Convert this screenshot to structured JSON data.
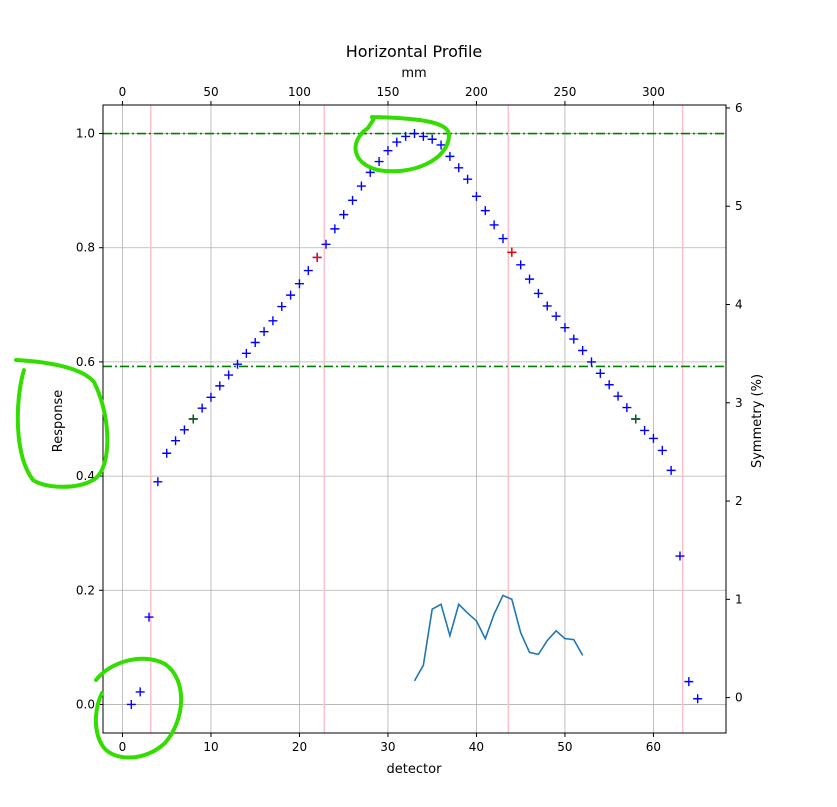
{
  "chart_data": {
    "type": "scatter",
    "title": "Horizontal Profile",
    "xlabel": "detector",
    "ylabel": "Response",
    "x2label": "mm",
    "y2label": "Symmetry (%)",
    "xlim": [
      -2.2,
      68.2
    ],
    "ylim": [
      -0.05,
      1.05
    ],
    "y2lim": [
      -0.36,
      6.03
    ],
    "x_ticks": [
      0,
      10,
      20,
      30,
      40,
      50,
      60
    ],
    "y_ticks": [
      0.0,
      0.2,
      0.4,
      0.6,
      0.8,
      1.0
    ],
    "x2_ticks": [
      0,
      50,
      100,
      150,
      200,
      250,
      300
    ],
    "y2_ticks": [
      0,
      1,
      2,
      3,
      4,
      5,
      6
    ],
    "mm_per_detector": 5.0,
    "grid": true,
    "series": [
      {
        "kind": "points",
        "color": "#0000ff",
        "x": [
          1,
          2,
          3,
          4,
          5,
          6,
          7,
          8,
          9,
          10,
          11,
          12,
          13,
          14,
          15,
          16,
          17,
          18,
          19,
          20,
          21,
          22,
          23,
          24,
          25,
          26,
          27,
          28,
          29,
          30,
          31,
          32,
          33,
          34,
          35,
          36,
          37,
          38,
          39,
          40,
          41,
          42,
          43,
          44,
          45,
          46,
          47,
          48,
          49,
          50,
          51,
          52,
          53,
          54,
          55,
          56,
          57,
          58,
          59,
          60,
          61,
          62,
          63,
          64,
          65
        ],
        "y": [
          0.0,
          0.022,
          0.153,
          0.39,
          0.44,
          0.462,
          0.481,
          0.5,
          0.519,
          0.538,
          0.558,
          0.577,
          0.596,
          0.615,
          0.634,
          0.653,
          0.672,
          0.697,
          0.717,
          0.737,
          0.76,
          0.783,
          0.806,
          0.833,
          0.858,
          0.883,
          0.908,
          0.932,
          0.951,
          0.97,
          0.985,
          0.995,
          1.0,
          0.995,
          0.99,
          0.98,
          0.96,
          0.94,
          0.92,
          0.89,
          0.865,
          0.84,
          0.816,
          0.792,
          0.77,
          0.745,
          0.72,
          0.698,
          0.68,
          0.66,
          0.64,
          0.62,
          0.6,
          0.58,
          0.56,
          0.54,
          0.52,
          0.5,
          0.48,
          0.466,
          0.445,
          0.41,
          0.26,
          0.04,
          0.01
        ]
      },
      {
        "kind": "markers",
        "color": "#ff0000",
        "x": [
          22,
          44
        ],
        "y": [
          0.783,
          0.792
        ]
      },
      {
        "kind": "markers",
        "color": "#006400",
        "x": [
          8,
          58
        ],
        "y": [
          0.5,
          0.5
        ]
      },
      {
        "kind": "line",
        "axis": "right",
        "color": "#1f77b4",
        "x": [
          33,
          34,
          35,
          36,
          37,
          38,
          39,
          40,
          41,
          42,
          43,
          44,
          45,
          46,
          47,
          48,
          49,
          50,
          51,
          52
        ],
        "y": [
          0.17,
          0.33,
          0.9,
          0.95,
          0.63,
          0.95,
          0.86,
          0.78,
          0.6,
          0.85,
          1.04,
          1.0,
          0.66,
          0.46,
          0.44,
          0.58,
          0.68,
          0.6,
          0.59,
          0.43
        ]
      }
    ],
    "hlines": [
      {
        "y": 1.0,
        "color": "#008000",
        "style": "dashdot"
      },
      {
        "y": 0.592,
        "color": "#008000",
        "style": "dashdot"
      }
    ],
    "vlines": [
      {
        "x": 3.2,
        "color": "#ffc0cb"
      },
      {
        "x": 22.8,
        "color": "#ffc0cb"
      },
      {
        "x": 43.6,
        "color": "#ffc0cb"
      },
      {
        "x": 63.3,
        "color": "#ffc0cb"
      }
    ],
    "annotations": {
      "color": "#33dd00",
      "shapes": [
        "circle around plateau top",
        "arc around y-axis label",
        "circle around origin points"
      ]
    }
  }
}
